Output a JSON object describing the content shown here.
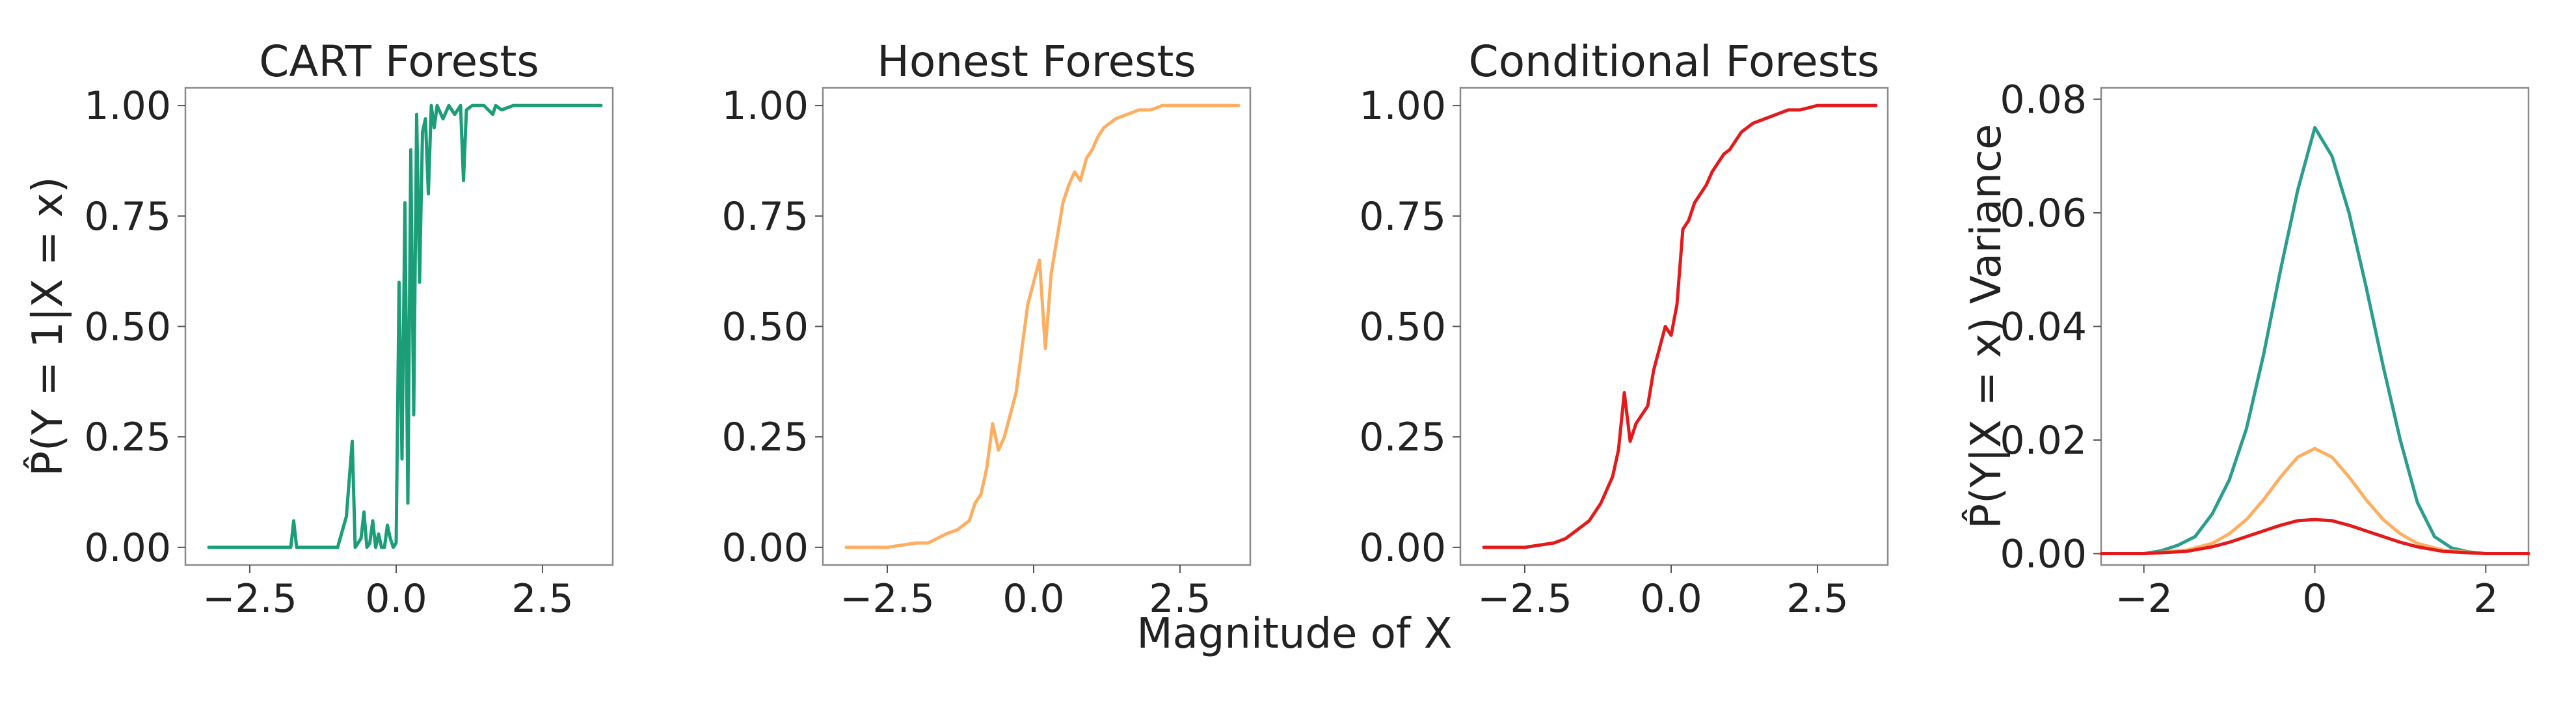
{
  "figure": {
    "shared_xlabel": "Magnitude of X",
    "ylabel_prob": "P̂(Y = 1|X = x)",
    "ylabel_var": "P̂(Y|X = x) Variance"
  },
  "colors": {
    "cart": "#1b9e77",
    "honest": "#fdae61",
    "conditional": "#e31a1c",
    "variance_cart": "#2a9d8f"
  },
  "chart_data": [
    {
      "type": "line",
      "title": "CART Forests",
      "xlabel": "",
      "ylabel": "P̂(Y = 1|X = x)",
      "xlim": [
        -3.6,
        3.7
      ],
      "ylim": [
        -0.04,
        1.04
      ],
      "xticks": [
        -2.5,
        0.0,
        2.5
      ],
      "xtick_labels": [
        "−2.5",
        "0.0",
        "2.5"
      ],
      "yticks": [
        0.0,
        0.25,
        0.5,
        0.75,
        1.0
      ],
      "ytick_labels": [
        "0.00",
        "0.25",
        "0.50",
        "0.75",
        "1.00"
      ],
      "color_key": "cart",
      "series": [
        {
          "x": [
            -3.2,
            -2.5,
            -2.0,
            -1.8,
            -1.75,
            -1.7,
            -1.5,
            -1.2,
            -1.0,
            -0.85,
            -0.75,
            -0.7,
            -0.6,
            -0.55,
            -0.5,
            -0.45,
            -0.4,
            -0.35,
            -0.3,
            -0.25,
            -0.2,
            -0.15,
            -0.1,
            -0.05,
            0.0,
            0.05,
            0.1,
            0.15,
            0.2,
            0.25,
            0.3,
            0.35,
            0.4,
            0.45,
            0.5,
            0.55,
            0.6,
            0.65,
            0.7,
            0.8,
            0.9,
            1.0,
            1.1,
            1.15,
            1.2,
            1.3,
            1.5,
            1.65,
            1.7,
            1.8,
            2.0,
            2.5,
            3.0,
            3.5
          ],
          "y": [
            0.0,
            0.0,
            0.0,
            0.0,
            0.06,
            0.0,
            0.0,
            0.0,
            0.0,
            0.07,
            0.24,
            0.0,
            0.02,
            0.08,
            0.0,
            0.01,
            0.06,
            0.0,
            0.03,
            0.0,
            0.0,
            0.05,
            0.02,
            0.0,
            0.01,
            0.6,
            0.2,
            0.78,
            0.1,
            0.9,
            0.3,
            0.98,
            0.6,
            0.94,
            0.97,
            0.8,
            1.0,
            0.95,
            1.0,
            0.97,
            1.0,
            0.98,
            1.0,
            0.83,
            0.99,
            1.0,
            1.0,
            0.98,
            1.0,
            0.99,
            1.0,
            1.0,
            1.0,
            1.0
          ]
        }
      ]
    },
    {
      "type": "line",
      "title": "Honest Forests",
      "xlabel": "",
      "ylabel": "",
      "xlim": [
        -3.6,
        3.7
      ],
      "ylim": [
        -0.04,
        1.04
      ],
      "xticks": [
        -2.5,
        0.0,
        2.5
      ],
      "xtick_labels": [
        "−2.5",
        "0.0",
        "2.5"
      ],
      "yticks": [
        0.0,
        0.25,
        0.5,
        0.75,
        1.0
      ],
      "ytick_labels": [
        "0.00",
        "0.25",
        "0.50",
        "0.75",
        "1.00"
      ],
      "color_key": "honest",
      "series": [
        {
          "x": [
            -3.2,
            -2.5,
            -2.0,
            -1.8,
            -1.5,
            -1.3,
            -1.1,
            -1.0,
            -0.9,
            -0.8,
            -0.7,
            -0.6,
            -0.5,
            -0.4,
            -0.3,
            -0.2,
            -0.1,
            0.0,
            0.1,
            0.2,
            0.3,
            0.4,
            0.5,
            0.6,
            0.7,
            0.8,
            0.9,
            1.0,
            1.1,
            1.2,
            1.4,
            1.6,
            1.8,
            2.0,
            2.2,
            2.5,
            3.0,
            3.5
          ],
          "y": [
            0.0,
            0.0,
            0.01,
            0.01,
            0.03,
            0.04,
            0.06,
            0.1,
            0.12,
            0.18,
            0.28,
            0.22,
            0.25,
            0.3,
            0.35,
            0.45,
            0.55,
            0.6,
            0.65,
            0.45,
            0.62,
            0.7,
            0.78,
            0.82,
            0.85,
            0.83,
            0.88,
            0.9,
            0.93,
            0.95,
            0.97,
            0.98,
            0.99,
            0.99,
            1.0,
            1.0,
            1.0,
            1.0
          ]
        }
      ]
    },
    {
      "type": "line",
      "title": "Conditional Forests",
      "xlabel": "",
      "ylabel": "",
      "xlim": [
        -3.6,
        3.7
      ],
      "ylim": [
        -0.04,
        1.04
      ],
      "xticks": [
        -2.5,
        0.0,
        2.5
      ],
      "xtick_labels": [
        "−2.5",
        "0.0",
        "2.5"
      ],
      "yticks": [
        0.0,
        0.25,
        0.5,
        0.75,
        1.0
      ],
      "ytick_labels": [
        "0.00",
        "0.25",
        "0.50",
        "0.75",
        "1.00"
      ],
      "color_key": "conditional",
      "series": [
        {
          "x": [
            -3.2,
            -2.5,
            -2.0,
            -1.8,
            -1.6,
            -1.4,
            -1.2,
            -1.0,
            -0.9,
            -0.8,
            -0.7,
            -0.6,
            -0.5,
            -0.4,
            -0.3,
            -0.2,
            -0.1,
            0.0,
            0.1,
            0.2,
            0.3,
            0.4,
            0.5,
            0.6,
            0.7,
            0.8,
            0.9,
            1.0,
            1.1,
            1.2,
            1.4,
            1.6,
            1.8,
            2.0,
            2.2,
            2.5,
            3.0,
            3.5
          ],
          "y": [
            0.0,
            0.0,
            0.01,
            0.02,
            0.04,
            0.06,
            0.1,
            0.16,
            0.22,
            0.35,
            0.24,
            0.28,
            0.3,
            0.32,
            0.4,
            0.45,
            0.5,
            0.48,
            0.55,
            0.72,
            0.74,
            0.78,
            0.8,
            0.82,
            0.85,
            0.87,
            0.89,
            0.9,
            0.92,
            0.94,
            0.96,
            0.97,
            0.98,
            0.99,
            0.99,
            1.0,
            1.0,
            1.0
          ]
        }
      ]
    },
    {
      "type": "line",
      "title": "",
      "xlabel": "",
      "ylabel": "P̂(Y|X = x) Variance",
      "xlim": [
        -2.5,
        2.5
      ],
      "ylim": [
        -0.002,
        0.082
      ],
      "xticks": [
        -2,
        0,
        2
      ],
      "xtick_labels": [
        "−2",
        "0",
        "2"
      ],
      "yticks": [
        0.0,
        0.02,
        0.04,
        0.06,
        0.08
      ],
      "ytick_labels": [
        "0.00",
        "0.02",
        "0.04",
        "0.06",
        "0.08"
      ],
      "series": [
        {
          "color_key": "variance_cart",
          "x": [
            -2.5,
            -2.0,
            -1.8,
            -1.6,
            -1.4,
            -1.2,
            -1.0,
            -0.8,
            -0.6,
            -0.4,
            -0.2,
            0.0,
            0.2,
            0.4,
            0.6,
            0.8,
            1.0,
            1.2,
            1.4,
            1.6,
            1.8,
            2.0,
            2.5
          ],
          "y": [
            0.0,
            0.0,
            0.0005,
            0.0015,
            0.003,
            0.007,
            0.013,
            0.022,
            0.035,
            0.05,
            0.064,
            0.075,
            0.07,
            0.06,
            0.047,
            0.033,
            0.02,
            0.009,
            0.003,
            0.001,
            0.0003,
            0.0,
            0.0
          ]
        },
        {
          "color_key": "honest",
          "x": [
            -2.5,
            -2.0,
            -1.5,
            -1.2,
            -1.0,
            -0.8,
            -0.6,
            -0.4,
            -0.2,
            0.0,
            0.2,
            0.4,
            0.6,
            0.8,
            1.0,
            1.2,
            1.5,
            2.0,
            2.5
          ],
          "y": [
            0.0,
            0.0,
            0.0006,
            0.0018,
            0.0035,
            0.006,
            0.0095,
            0.0135,
            0.017,
            0.0185,
            0.017,
            0.0135,
            0.0095,
            0.006,
            0.0035,
            0.0018,
            0.0006,
            0.0,
            0.0
          ]
        },
        {
          "color_key": "conditional",
          "x": [
            -2.5,
            -2.0,
            -1.5,
            -1.2,
            -1.0,
            -0.8,
            -0.6,
            -0.4,
            -0.2,
            0.0,
            0.2,
            0.4,
            0.6,
            0.8,
            1.0,
            1.2,
            1.5,
            2.0,
            2.5
          ],
          "y": [
            0.0,
            0.0,
            0.0004,
            0.0012,
            0.002,
            0.003,
            0.004,
            0.005,
            0.0058,
            0.006,
            0.0058,
            0.005,
            0.004,
            0.003,
            0.002,
            0.0012,
            0.0004,
            0.0,
            0.0
          ]
        }
      ]
    }
  ]
}
